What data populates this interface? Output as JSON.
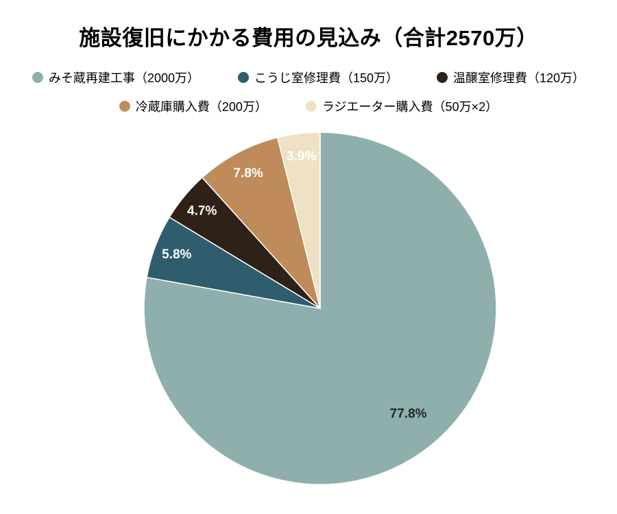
{
  "chart_data": {
    "type": "pie",
    "title": "施設復旧にかかる費用の見込み（合計2570万）",
    "total": 2570,
    "unit": "万",
    "legend_position": "top",
    "start_angle_deg": -90,
    "direction": "clockwise",
    "slices": [
      {
        "label": "みそ蔵再建工事（2000万）",
        "value": 2000,
        "percent": 77.8,
        "percent_label": "77.8%",
        "color": "#8FAFAD",
        "text_color": "#262626"
      },
      {
        "label": "こうじ室修理費（150万）",
        "value": 150,
        "percent": 5.8,
        "percent_label": "5.8%",
        "color": "#2F5D6D",
        "text_color": "#ffffff"
      },
      {
        "label": "温醸室修理費（120万）",
        "value": 120,
        "percent": 4.7,
        "percent_label": "4.7%",
        "color": "#2E2117",
        "text_color": "#ffffff"
      },
      {
        "label": "冷蔵庫購入費（200万）",
        "value": 200,
        "percent": 7.8,
        "percent_label": "7.8%",
        "color": "#BF8B5B",
        "text_color": "#ffffff"
      },
      {
        "label": "ラジエーター購入費（50万×2）",
        "value": 100,
        "percent": 3.9,
        "percent_label": "3.9%",
        "color": "#EFE1C5",
        "text_color": "#ffffff"
      }
    ]
  }
}
